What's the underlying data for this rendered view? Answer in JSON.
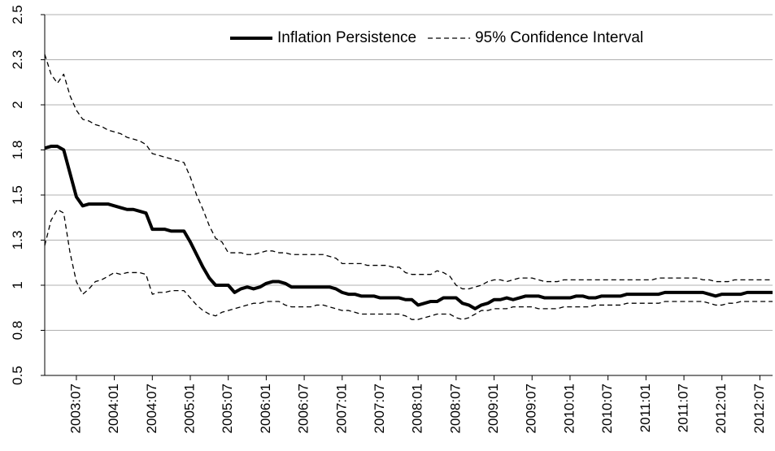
{
  "chart_data": {
    "type": "line",
    "categories": [
      null,
      null,
      null,
      null,
      null,
      "2003:07",
      null,
      null,
      null,
      null,
      null,
      "2004:01",
      null,
      null,
      null,
      null,
      null,
      "2004:07",
      null,
      null,
      null,
      null,
      null,
      "2005:01",
      null,
      null,
      null,
      null,
      null,
      "2005:07",
      null,
      null,
      null,
      null,
      null,
      "2006:01",
      null,
      null,
      null,
      null,
      null,
      "2006:07",
      null,
      null,
      null,
      null,
      null,
      "2007:01",
      null,
      null,
      null,
      null,
      null,
      "2007:07",
      null,
      null,
      null,
      null,
      null,
      "2008:01",
      null,
      null,
      null,
      null,
      null,
      "2008:07",
      null,
      null,
      null,
      null,
      null,
      "2009:01",
      null,
      null,
      null,
      null,
      null,
      "2009:07",
      null,
      null,
      null,
      null,
      null,
      "2010:01",
      null,
      null,
      null,
      null,
      null,
      "2010:07",
      null,
      null,
      null,
      null,
      null,
      "2011:01",
      null,
      null,
      null,
      null,
      null,
      "2011:07",
      null,
      null,
      null,
      null,
      null,
      "2012:01",
      null,
      null,
      null,
      null,
      null,
      "2012:07",
      null,
      null
    ],
    "series": [
      {
        "name": "Inflation Persistence",
        "color": "#000000",
        "style": "solid",
        "values": [
          1.76,
          1.77,
          1.77,
          1.75,
          1.62,
          1.49,
          1.44,
          1.45,
          1.45,
          1.45,
          1.45,
          1.44,
          1.43,
          1.42,
          1.42,
          1.41,
          1.4,
          1.31,
          1.31,
          1.31,
          1.3,
          1.3,
          1.3,
          1.24,
          1.17,
          1.1,
          1.04,
          1.0,
          1.0,
          1.0,
          0.96,
          0.98,
          0.99,
          0.98,
          0.99,
          1.01,
          1.02,
          1.02,
          1.01,
          0.99,
          0.99,
          0.99,
          0.99,
          0.99,
          0.99,
          0.99,
          0.98,
          0.96,
          0.95,
          0.95,
          0.94,
          0.94,
          0.94,
          0.93,
          0.93,
          0.93,
          0.93,
          0.92,
          0.92,
          0.89,
          0.9,
          0.91,
          0.91,
          0.93,
          0.93,
          0.93,
          0.9,
          0.89,
          0.87,
          0.89,
          0.9,
          0.92,
          0.92,
          0.93,
          0.92,
          0.93,
          0.94,
          0.94,
          0.94,
          0.93,
          0.93,
          0.93,
          0.93,
          0.93,
          0.94,
          0.94,
          0.93,
          0.93,
          0.94,
          0.94,
          0.94,
          0.94,
          0.95,
          0.95,
          0.95,
          0.95,
          0.95,
          0.95,
          0.96,
          0.96,
          0.96,
          0.96,
          0.96,
          0.96,
          0.96,
          0.95,
          0.94,
          0.95,
          0.95,
          0.95,
          0.95,
          0.96,
          0.96,
          0.96,
          0.96,
          0.96
        ]
      },
      {
        "name": "95% Confidence Interval",
        "color": "#000000",
        "style": "dashed",
        "values": [
          2.28,
          2.17,
          2.12,
          2.17,
          2.05,
          1.97,
          1.92,
          1.91,
          1.89,
          1.88,
          1.86,
          1.85,
          1.84,
          1.82,
          1.81,
          1.8,
          1.78,
          1.73,
          1.72,
          1.71,
          1.7,
          1.69,
          1.68,
          1.6,
          1.5,
          1.42,
          1.33,
          1.26,
          1.24,
          1.18,
          1.18,
          1.18,
          1.17,
          1.17,
          1.18,
          1.19,
          1.19,
          1.18,
          1.18,
          1.17,
          1.17,
          1.17,
          1.17,
          1.17,
          1.17,
          1.16,
          1.15,
          1.12,
          1.12,
          1.12,
          1.12,
          1.11,
          1.11,
          1.11,
          1.11,
          1.1,
          1.1,
          1.07,
          1.06,
          1.06,
          1.06,
          1.06,
          1.08,
          1.07,
          1.05,
          1.0,
          0.98,
          0.98,
          0.99,
          1.0,
          1.02,
          1.03,
          1.03,
          1.02,
          1.03,
          1.04,
          1.04,
          1.04,
          1.03,
          1.02,
          1.02,
          1.02,
          1.03,
          1.03,
          1.03,
          1.03,
          1.03,
          1.03,
          1.03,
          1.03,
          1.03,
          1.03,
          1.03,
          1.03,
          1.03,
          1.03,
          1.03,
          1.04,
          1.04,
          1.04,
          1.04,
          1.04,
          1.04,
          1.04,
          1.03,
          1.03,
          1.02,
          1.02,
          1.02,
          1.03,
          1.03,
          1.03,
          1.03,
          1.03,
          1.03,
          1.03
        ]
      },
      {
        "color": "#000000",
        "style": "dashed",
        "values": [
          1.22,
          1.36,
          1.42,
          1.4,
          1.18,
          1.02,
          0.95,
          0.98,
          1.02,
          1.03,
          1.05,
          1.07,
          1.06,
          1.07,
          1.07,
          1.07,
          1.06,
          0.95,
          0.96,
          0.96,
          0.97,
          0.97,
          0.97,
          0.93,
          0.89,
          0.86,
          0.84,
          0.83,
          0.85,
          0.86,
          0.87,
          0.88,
          0.89,
          0.9,
          0.9,
          0.91,
          0.91,
          0.91,
          0.89,
          0.88,
          0.88,
          0.88,
          0.88,
          0.89,
          0.89,
          0.88,
          0.87,
          0.86,
          0.86,
          0.85,
          0.84,
          0.84,
          0.84,
          0.84,
          0.84,
          0.84,
          0.84,
          0.83,
          0.81,
          0.81,
          0.82,
          0.83,
          0.84,
          0.84,
          0.84,
          0.82,
          0.81,
          0.82,
          0.84,
          0.86,
          0.86,
          0.87,
          0.87,
          0.87,
          0.88,
          0.88,
          0.88,
          0.88,
          0.87,
          0.87,
          0.87,
          0.87,
          0.88,
          0.88,
          0.88,
          0.88,
          0.88,
          0.89,
          0.89,
          0.89,
          0.89,
          0.89,
          0.9,
          0.9,
          0.9,
          0.9,
          0.9,
          0.9,
          0.91,
          0.91,
          0.91,
          0.91,
          0.91,
          0.91,
          0.91,
          0.9,
          0.89,
          0.89,
          0.9,
          0.9,
          0.91,
          0.91,
          0.91,
          0.91,
          0.91,
          0.91
        ]
      }
    ],
    "ylim": [
      0.5,
      2.5
    ],
    "yticks": [
      0.5,
      {
        "value": 0.75,
        "label": "0.8"
      },
      1.0,
      {
        "value": 1.25,
        "label": "1.3"
      },
      1.5,
      {
        "value": 1.75,
        "label": "1.8"
      },
      2.0,
      {
        "value": 2.25,
        "label": "2.3"
      },
      2.5
    ],
    "grid": true,
    "legend": "upper right"
  }
}
